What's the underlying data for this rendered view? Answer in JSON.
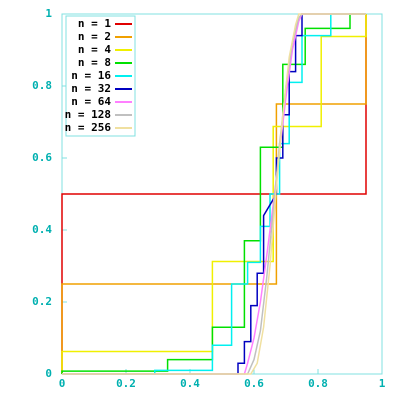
{
  "chart_data": {
    "type": "line",
    "step": true,
    "xlim": [
      0,
      1
    ],
    "ylim": [
      0,
      1
    ],
    "xticks": [
      0,
      0.2,
      0.4,
      0.6,
      0.8,
      1
    ],
    "yticks": [
      0,
      0.2,
      0.4,
      0.6,
      0.8,
      1
    ],
    "legend": "upper left",
    "series": [
      {
        "name": "n = 1",
        "color": "#e00000",
        "x": [
          0,
          0,
          0.95,
          0.95
        ],
        "values": [
          0,
          0.5,
          0.5,
          1
        ]
      },
      {
        "name": "n = 2",
        "color": "#f0a000",
        "x": [
          0,
          0,
          0.67,
          0.67,
          0.95,
          0.95
        ],
        "values": [
          0,
          0.25,
          0.25,
          0.75,
          0.75,
          1
        ]
      },
      {
        "name": "n = 4",
        "color": "#f0f000",
        "x": [
          0,
          0,
          0.47,
          0.47,
          0.66,
          0.66,
          0.81,
          0.81,
          0.95,
          0.95
        ],
        "values": [
          0,
          0.0625,
          0.0625,
          0.3125,
          0.3125,
          0.6875,
          0.6875,
          0.9375,
          0.9375,
          1
        ]
      },
      {
        "name": "n = 8",
        "color": "#00e000",
        "x": [
          0,
          0,
          0.33,
          0.33,
          0.47,
          0.47,
          0.57,
          0.57,
          0.62,
          0.62,
          0.69,
          0.69,
          0.76,
          0.76,
          0.9,
          0.9,
          0.95
        ],
        "values": [
          0,
          0.008,
          0.008,
          0.04,
          0.04,
          0.13,
          0.13,
          0.37,
          0.37,
          0.63,
          0.63,
          0.86,
          0.86,
          0.96,
          0.96,
          1,
          1
        ]
      },
      {
        "name": "n = 16",
        "color": "#00f0f0",
        "x": [
          0,
          0.29,
          0.29,
          0.47,
          0.47,
          0.53,
          0.53,
          0.58,
          0.58,
          0.62,
          0.62,
          0.65,
          0.65,
          0.68,
          0.68,
          0.71,
          0.71,
          0.75,
          0.75,
          0.84,
          0.84,
          0.95
        ],
        "values": [
          0,
          0,
          0.01,
          0.01,
          0.08,
          0.08,
          0.25,
          0.25,
          0.31,
          0.31,
          0.41,
          0.41,
          0.5,
          0.5,
          0.64,
          0.64,
          0.81,
          0.81,
          0.94,
          0.94,
          1,
          1
        ]
      },
      {
        "name": "n = 32",
        "color": "#0000c0",
        "x": [
          0,
          0.55,
          0.55,
          0.57,
          0.57,
          0.59,
          0.59,
          0.61,
          0.61,
          0.63,
          0.63,
          0.67,
          0.67,
          0.69,
          0.69,
          0.71,
          0.71,
          0.73,
          0.73,
          0.75,
          0.75,
          0.95
        ],
        "values": [
          0,
          0,
          0.03,
          0.03,
          0.09,
          0.09,
          0.19,
          0.19,
          0.28,
          0.28,
          0.44,
          0.5,
          0.6,
          0.6,
          0.72,
          0.72,
          0.84,
          0.84,
          0.94,
          0.94,
          1,
          1
        ]
      },
      {
        "name": "n = 64",
        "color": "#ff80ff",
        "x": [
          0,
          0.57,
          0.58,
          0.6,
          0.62,
          0.64,
          0.66,
          0.68,
          0.7,
          0.72,
          0.74,
          0.75,
          0.95
        ],
        "values": [
          0,
          0,
          0.03,
          0.1,
          0.2,
          0.33,
          0.47,
          0.62,
          0.77,
          0.9,
          0.98,
          1,
          1
        ]
      },
      {
        "name": "n = 128",
        "color": "#c0c0c0",
        "x": [
          0,
          0.58,
          0.6,
          0.62,
          0.64,
          0.66,
          0.68,
          0.7,
          0.72,
          0.74,
          0.75,
          0.95
        ],
        "values": [
          0,
          0,
          0.04,
          0.12,
          0.27,
          0.45,
          0.64,
          0.8,
          0.92,
          0.99,
          1,
          1
        ]
      },
      {
        "name": "n = 256",
        "color": "#f0e0a0",
        "x": [
          0,
          0.59,
          0.61,
          0.63,
          0.65,
          0.67,
          0.69,
          0.71,
          0.73,
          0.74,
          0.95
        ],
        "values": [
          0,
          0,
          0.03,
          0.13,
          0.3,
          0.52,
          0.72,
          0.88,
          0.97,
          1,
          1
        ]
      }
    ]
  }
}
